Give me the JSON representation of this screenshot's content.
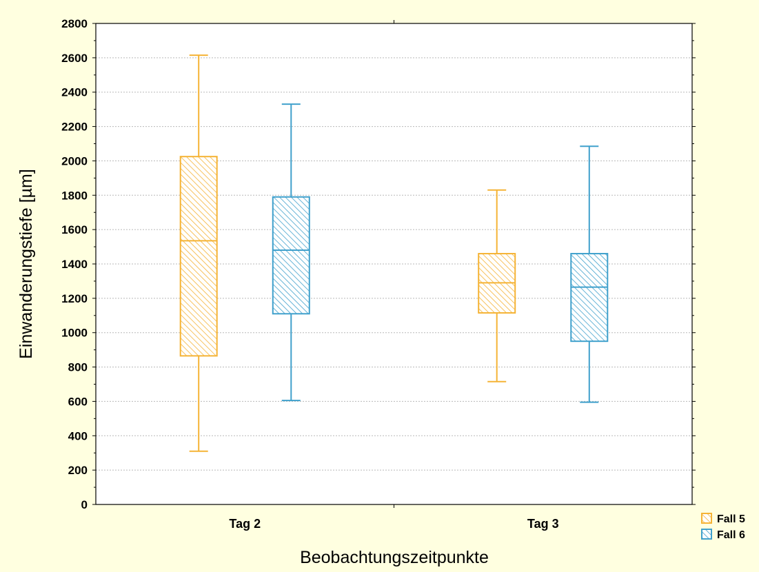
{
  "chart_data": {
    "type": "box",
    "xlabel": "Beobachtungszeitpunkte",
    "ylabel": "Einwanderungstiefe [µm]",
    "categories": [
      "Tag 2",
      "Tag 3"
    ],
    "ylim": [
      0,
      2800
    ],
    "yticks": [
      0,
      200,
      400,
      600,
      800,
      1000,
      1200,
      1400,
      1600,
      1800,
      2000,
      2200,
      2400,
      2600,
      2800
    ],
    "grid": true,
    "legend_position": "bottom-right",
    "series": [
      {
        "name": "Fall 5",
        "color": "#f5b335",
        "boxes": [
          {
            "category": "Tag 2",
            "min": 310,
            "q1": 865,
            "median": 1535,
            "q3": 2025,
            "max": 2615
          },
          {
            "category": "Tag 3",
            "min": 715,
            "q1": 1115,
            "median": 1290,
            "q3": 1460,
            "max": 1830
          }
        ]
      },
      {
        "name": "Fall 6",
        "color": "#3fa0cc",
        "boxes": [
          {
            "category": "Tag 2",
            "min": 605,
            "q1": 1110,
            "median": 1480,
            "q3": 1790,
            "max": 2330
          },
          {
            "category": "Tag 3",
            "min": 595,
            "q1": 950,
            "median": 1265,
            "q3": 1460,
            "max": 2085
          }
        ]
      }
    ]
  }
}
